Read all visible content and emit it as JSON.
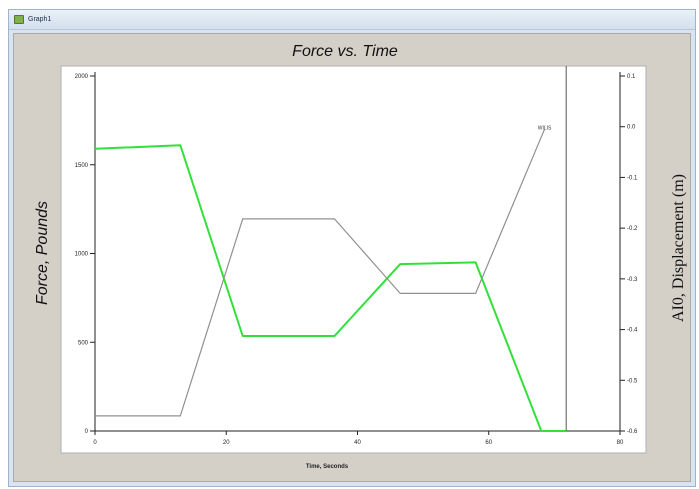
{
  "window": {
    "title": "Graph1"
  },
  "chart_data": {
    "type": "line",
    "title": "Force vs. Time",
    "xlabel": "Time, Seconds",
    "ylabel": "Force, Pounds",
    "y2label": "AI0, Displacement (m)",
    "xlim": [
      0,
      80
    ],
    "ylim": [
      0,
      2000
    ],
    "y2lim": [
      -0.6,
      0.1
    ],
    "x_ticks": [
      "0",
      "20",
      "40",
      "60",
      "80"
    ],
    "y_ticks": [
      "0",
      "500",
      "1000",
      "1500",
      "2000"
    ],
    "y2_ticks": [
      "0.1",
      "0.0",
      "-0.1",
      "-0.2",
      "-0.3",
      "-0.4",
      "-0.5",
      "-0.6"
    ],
    "grid": false,
    "cursor": {
      "x": 71.8
    },
    "annotations": [
      {
        "text": "WILIS",
        "x": 68.5,
        "y": 1700
      }
    ],
    "series": [
      {
        "color": "#33e03a",
        "axis": "left",
        "x": [
          0,
          13,
          22.5,
          36.5,
          46.5,
          58,
          68,
          71.8
        ],
        "y": [
          1590,
          1610,
          535,
          535,
          940,
          950,
          0,
          0
        ]
      },
      {
        "color": "#909090",
        "axis": "left",
        "x": [
          0,
          13,
          22.5,
          36.5,
          46.5,
          58,
          68.5
        ],
        "y": [
          85,
          85,
          1195,
          1195,
          775,
          775,
          1700
        ]
      }
    ]
  }
}
